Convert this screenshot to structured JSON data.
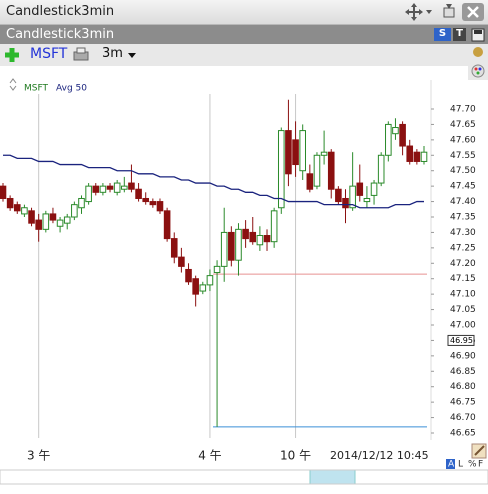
{
  "window": {
    "title": "Candlestick3min",
    "subtitle": "Candlestick3min",
    "interval": "3m",
    "menu_s": "S",
    "menu_t": "T"
  },
  "chart_data": {
    "type": "candlestick",
    "symbol": {
      "name": "MSFT",
      "color": "#1f7a1f"
    },
    "categories": [
      null,
      null,
      null,
      null,
      null,
      "3 午",
      null,
      null,
      null,
      null,
      null,
      null,
      null,
      null,
      null,
      null,
      null,
      null,
      null,
      null,
      null,
      null,
      null,
      null,
      null,
      null,
      null,
      null,
      null,
      "4 午",
      null,
      null,
      null,
      null,
      null,
      null,
      null,
      null,
      null,
      null,
      null,
      "10 午",
      null,
      null,
      null,
      null,
      null,
      null,
      null,
      null,
      null,
      null,
      null,
      null,
      null,
      null,
      null,
      null,
      null,
      null
    ],
    "open": [
      47.45,
      47.41,
      47.39,
      47.36,
      47.37,
      47.34,
      47.31,
      47.36,
      47.32,
      47.33,
      47.35,
      47.38,
      47.4,
      47.45,
      47.43,
      47.45,
      47.43,
      47.44,
      47.46,
      47.44,
      47.41,
      47.4,
      47.4,
      47.37,
      47.28,
      47.22,
      47.18,
      47.15,
      47.11,
      47.13,
      47.17,
      47.19,
      47.3,
      47.21,
      47.31,
      47.3,
      47.26,
      47.29,
      47.27,
      47.38,
      47.63,
      47.6,
      47.5,
      47.49,
      47.45,
      47.55,
      47.56,
      47.44,
      47.41,
      47.38,
      47.46,
      47.4,
      47.42,
      47.46,
      47.55,
      47.62,
      47.65,
      47.58,
      47.56,
      47.53
    ],
    "high": [
      47.46,
      47.42,
      47.4,
      47.39,
      47.38,
      47.36,
      47.37,
      47.38,
      47.35,
      47.36,
      47.4,
      47.42,
      47.46,
      47.46,
      47.46,
      47.46,
      47.47,
      47.48,
      47.52,
      47.46,
      47.43,
      47.41,
      47.41,
      47.38,
      47.3,
      47.25,
      47.2,
      47.16,
      47.14,
      47.18,
      47.21,
      47.38,
      47.32,
      47.33,
      47.34,
      47.35,
      47.32,
      47.31,
      47.38,
      47.64,
      47.73,
      47.66,
      47.65,
      47.52,
      47.56,
      47.63,
      47.57,
      47.45,
      47.44,
      47.56,
      47.52,
      47.45,
      47.47,
      47.56,
      47.66,
      47.67,
      47.66,
      47.6,
      47.57,
      47.58
    ],
    "low": [
      47.4,
      47.37,
      47.36,
      47.35,
      47.32,
      47.27,
      47.3,
      47.33,
      47.3,
      47.31,
      47.34,
      47.36,
      47.39,
      47.42,
      47.42,
      47.43,
      47.42,
      47.43,
      47.43,
      47.4,
      47.39,
      47.38,
      47.36,
      47.27,
      47.2,
      47.17,
      47.13,
      47.06,
      47.1,
      47.11,
      46.67,
      47.14,
      47.19,
      47.16,
      47.25,
      47.26,
      47.24,
      47.24,
      47.25,
      47.36,
      47.45,
      47.48,
      47.47,
      47.43,
      47.44,
      47.52,
      47.41,
      47.39,
      47.33,
      47.37,
      47.4,
      47.38,
      47.39,
      47.45,
      47.53,
      47.6,
      47.55,
      47.52,
      47.52,
      47.52
    ],
    "close": [
      47.41,
      47.38,
      47.37,
      47.38,
      47.33,
      47.31,
      47.36,
      47.34,
      47.34,
      47.35,
      47.39,
      47.41,
      47.45,
      47.43,
      47.45,
      47.44,
      47.46,
      47.45,
      47.44,
      47.41,
      47.4,
      47.39,
      47.37,
      47.28,
      47.22,
      47.19,
      47.14,
      47.1,
      47.13,
      47.16,
      47.19,
      47.3,
      47.21,
      47.31,
      47.28,
      47.27,
      47.29,
      47.27,
      47.37,
      47.63,
      47.49,
      47.52,
      47.63,
      47.44,
      47.55,
      47.56,
      47.44,
      47.4,
      47.38,
      47.45,
      47.42,
      47.41,
      47.46,
      47.55,
      47.65,
      47.64,
      47.58,
      47.53,
      47.53,
      47.56
    ],
    "up_color": "#2a8a2a",
    "down_color": "#8b1010",
    "moving_average": {
      "name": "Avg 50",
      "color": "#1a237e",
      "values": [
        47.55,
        47.55,
        47.54,
        47.54,
        47.54,
        47.53,
        47.53,
        47.53,
        47.52,
        47.52,
        47.52,
        47.52,
        47.51,
        47.51,
        47.51,
        47.51,
        47.5,
        47.5,
        47.5,
        47.49,
        47.49,
        47.49,
        47.48,
        47.48,
        47.48,
        47.47,
        47.47,
        47.46,
        47.46,
        47.46,
        47.45,
        47.45,
        47.44,
        47.44,
        47.43,
        47.43,
        47.42,
        47.42,
        47.41,
        47.41,
        47.4,
        47.4,
        47.4,
        47.4,
        47.4,
        47.39,
        47.39,
        47.39,
        47.39,
        47.39,
        47.38,
        47.38,
        47.38,
        47.38,
        47.38,
        47.39,
        47.39,
        47.39,
        47.4,
        47.4
      ]
    },
    "levels": [
      {
        "value": 47.165,
        "color": "#e89090"
      },
      {
        "value": 46.67,
        "color": "#3a8fd8"
      }
    ],
    "price_tag": {
      "value": 46.95,
      "label": "46.95"
    },
    "ylim": [
      46.65,
      47.7
    ],
    "yticks": [
      46.65,
      {
        "value": 46.7,
        "label": "46.70"
      },
      46.75,
      {
        "value": 46.8,
        "label": "46.80"
      },
      46.85,
      {
        "value": 46.9,
        "label": "46.90"
      },
      46.95,
      {
        "value": 47,
        "label": "47.00"
      },
      47.05,
      {
        "value": 47.1,
        "label": "47.10"
      },
      47.15,
      {
        "value": 47.2,
        "label": "47.20"
      },
      47.25,
      {
        "value": 47.3,
        "label": "47.30"
      },
      47.35,
      {
        "value": 47.4,
        "label": "47.40"
      },
      47.45,
      {
        "value": 47.5,
        "label": "47.50"
      },
      47.55,
      {
        "value": 47.6,
        "label": "47.60"
      },
      47.65,
      {
        "value": 47.7,
        "label": "47.70"
      }
    ],
    "date_label": "2014/12/12 10:45",
    "axis_modes": [
      "A",
      "L",
      "%",
      "F"
    ]
  }
}
